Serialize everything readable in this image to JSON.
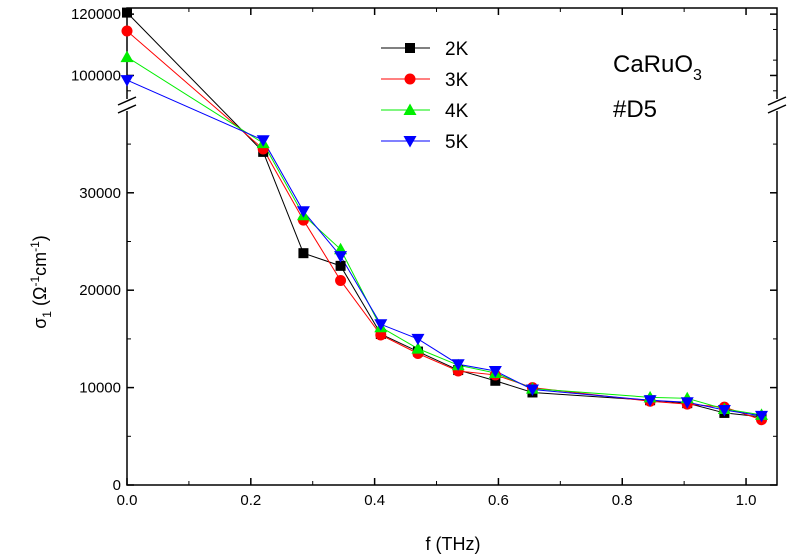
{
  "chart_data": {
    "type": "line",
    "xlabel": "f (THz)",
    "ylabel": {
      "main": "σ",
      "sub1": "1",
      "paren": " (Ω",
      "sup1": "-1",
      "mid": "cm",
      "sup2": "-1",
      "close": ")"
    },
    "xlim": [
      0.0,
      1.05
    ],
    "x_ticks": [
      "0.0",
      "0.2",
      "0.4",
      "0.6",
      "0.8",
      "1.0"
    ],
    "y_lower_ticks": [
      "0",
      "10000",
      "20000",
      "30000"
    ],
    "y_upper_ticks": [
      "100000",
      "120000"
    ],
    "y_break": {
      "lower_range": [
        0,
        38500
      ],
      "upper_range": [
        92000,
        122000
      ]
    },
    "annotations": {
      "material_base": "CaRuO",
      "material_sub": "3",
      "sample": "#D5"
    },
    "legend_position": "top-center",
    "grid": false,
    "series": [
      {
        "name": "2K",
        "color": "#000000",
        "marker": "square",
        "x": [
          0.0,
          0.22,
          0.285,
          0.345,
          0.41,
          0.47,
          0.535,
          0.595,
          0.655,
          0.845,
          0.905,
          0.965,
          1.025
        ],
        "y": [
          120500,
          34200,
          23800,
          22500,
          15500,
          13700,
          11800,
          10700,
          9500,
          8700,
          8400,
          7400,
          7000
        ]
      },
      {
        "name": "3K",
        "color": "#ff0000",
        "marker": "circle",
        "x": [
          0.0,
          0.22,
          0.285,
          0.345,
          0.41,
          0.47,
          0.535,
          0.595,
          0.655,
          0.845,
          0.905,
          0.965,
          1.025
        ],
        "y": [
          114500,
          34500,
          27200,
          21000,
          15400,
          13500,
          11700,
          11300,
          10000,
          8600,
          8300,
          8000,
          6700
        ]
      },
      {
        "name": "4K",
        "color": "#00ee00",
        "marker": "triangle-up",
        "x": [
          0.0,
          0.22,
          0.285,
          0.345,
          0.41,
          0.47,
          0.535,
          0.595,
          0.655,
          0.845,
          0.905,
          0.965,
          1.025
        ],
        "y": [
          106000,
          35100,
          27700,
          24200,
          16200,
          14000,
          12300,
          11500,
          9900,
          9000,
          8900,
          7800,
          7200
        ]
      },
      {
        "name": "5K",
        "color": "#0000ff",
        "marker": "triangle-down",
        "x": [
          0.0,
          0.22,
          0.285,
          0.345,
          0.41,
          0.47,
          0.535,
          0.595,
          0.655,
          0.845,
          0.905,
          0.965,
          1.025
        ],
        "y": [
          98500,
          35400,
          28100,
          23500,
          16500,
          15000,
          12400,
          11700,
          9800,
          8700,
          8500,
          7700,
          7100
        ]
      }
    ]
  }
}
